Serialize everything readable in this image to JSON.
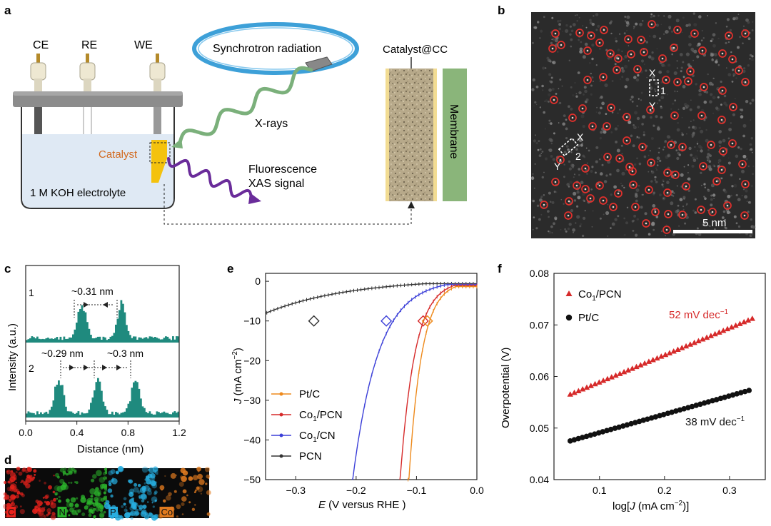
{
  "panels": {
    "a": {
      "letter": "a",
      "electrodes": [
        "CE",
        "RE",
        "WE"
      ],
      "synchrotron": "Synchrotron radiation",
      "xrays": "X-rays",
      "catalyst": "Catalyst",
      "fluorescence": [
        "Fluorescence",
        "XAS signal"
      ],
      "electrolyte": "1 M KOH electrolyte",
      "catalyst_cc": "Catalyst@CC",
      "membrane": "Membrane"
    },
    "b": {
      "letter": "b",
      "scale_bar": "5 nm",
      "box1": {
        "top": "X",
        "bottom": "Y",
        "num": "1"
      },
      "box2": {
        "top": "X",
        "bottom": "Y",
        "num": "2"
      }
    },
    "c": {
      "letter": "c",
      "ylabel": "Intensity (a.u.)",
      "xlabel": "Distance (nm)",
      "profile1_label": "1",
      "profile2_label": "2",
      "annot1": "~0.31 nm",
      "annot2a": "~0.29 nm",
      "annot2b": "~0.3 nm"
    },
    "d": {
      "letter": "d",
      "maps": [
        {
          "label": "C",
          "color": "#e8221c"
        },
        {
          "label": "N",
          "color": "#2bb12b"
        },
        {
          "label": "P",
          "color": "#27aee0"
        },
        {
          "label": "Co",
          "color": "#e07a1f"
        }
      ]
    },
    "e": {
      "letter": "e"
    },
    "f": {
      "letter": "f",
      "slope_red": "52 mV dec",
      "slope_black": "38 mV dec",
      "slope_sup": "−1"
    }
  },
  "chart_data": [
    {
      "id": "c",
      "type": "bar",
      "xlabel": "Distance (nm)",
      "ylabel": "Intensity (a.u.)",
      "xlim": [
        0.0,
        1.2
      ],
      "xticks": [
        "0.0",
        "0.4",
        "0.8",
        "1.2"
      ],
      "series": [
        {
          "name": "1",
          "peaks_nm": [
            0.44,
            0.75
          ]
        },
        {
          "name": "2",
          "peaks_nm": [
            0.26,
            0.56,
            0.86
          ]
        }
      ],
      "annotations": [
        "~0.31 nm",
        "~0.29 nm",
        "~0.3 nm"
      ]
    },
    {
      "id": "e",
      "type": "line",
      "xlabel_main": "E",
      "xlabel_rest": " (V versus RHE )",
      "ylabel_main": "J",
      "ylabel_rest": " (mA cm",
      "ylabel_sup": "−2",
      "ylabel_end": ")",
      "xlim": [
        -0.35,
        0.0
      ],
      "ylim": [
        -50,
        2
      ],
      "xticks": [
        -0.3,
        -0.2,
        -0.1,
        0.0
      ],
      "xtick_labels": [
        "−0.3",
        "−0.2",
        "−0.1",
        "0.0"
      ],
      "yticks": [
        0,
        -10,
        -20,
        -30,
        -40,
        -50
      ],
      "ytick_labels": [
        "0",
        "−10",
        "−20",
        "−30",
        "−40",
        "−50"
      ],
      "marker_y": -10,
      "series": [
        {
          "name": "Pt/C",
          "label_main": "Pt/C",
          "label_sub": "",
          "label_end": "",
          "color": "#ee8a1c",
          "onset": -0.035,
          "k": 47,
          "tafel_b": 0.038,
          "marker_x": -0.082
        },
        {
          "name": "Co1/PCN",
          "label_main": "Co",
          "label_sub": "1",
          "label_end": "/PCN",
          "color": "#d62a2a",
          "onset": -0.038,
          "k": 41,
          "tafel_b": 0.052,
          "marker_x": -0.089
        },
        {
          "name": "Co1/CN",
          "label_main": "Co",
          "label_sub": "1",
          "label_end": "/CN",
          "color": "#3b3fd8",
          "onset": -0.05,
          "k": 23.5,
          "tafel_b": 0.075,
          "marker_x": -0.15
        },
        {
          "name": "PCN",
          "label_main": "PCN",
          "label_sub": "",
          "label_end": "",
          "color": "#333333",
          "onset": -0.085,
          "k": 7.2,
          "tafel_b": 0.11,
          "marker_x": -0.27
        }
      ]
    },
    {
      "id": "f",
      "type": "scatter",
      "xlabel_main": "log[",
      "xlabel_j": "J",
      "xlabel_rest": " (mA cm",
      "xlabel_sup": "−2",
      "xlabel_end": ")]",
      "ylabel": "Overpotential (V)",
      "xlim": [
        0.03,
        0.355
      ],
      "ylim": [
        0.04,
        0.08
      ],
      "xticks": [
        0.1,
        0.2,
        0.3
      ],
      "xtick_labels": [
        "0.1",
        "0.2",
        "0.3"
      ],
      "yticks": [
        0.04,
        0.05,
        0.06,
        0.07,
        0.08
      ],
      "ytick_labels": [
        "0.04",
        "0.05",
        "0.06",
        "0.07",
        "0.08"
      ],
      "series": [
        {
          "name": "Co1/PCN",
          "label_main": "Co",
          "label_sub": "1",
          "label_end": "/PCN",
          "color": "#d62a2a",
          "marker": "triangle",
          "x_start": 0.055,
          "x_end": 0.335,
          "y_start": 0.0565,
          "y_end": 0.0712,
          "n": 45
        },
        {
          "name": "Pt/C",
          "label_main": "Pt/C",
          "label_sub": "",
          "label_end": "",
          "color": "#111111",
          "marker": "circle",
          "x_start": 0.055,
          "x_end": 0.33,
          "y_start": 0.0475,
          "y_end": 0.0573,
          "n": 45
        }
      ],
      "annotations": [
        "52 mV dec−1",
        "38 mV dec−1"
      ]
    }
  ]
}
